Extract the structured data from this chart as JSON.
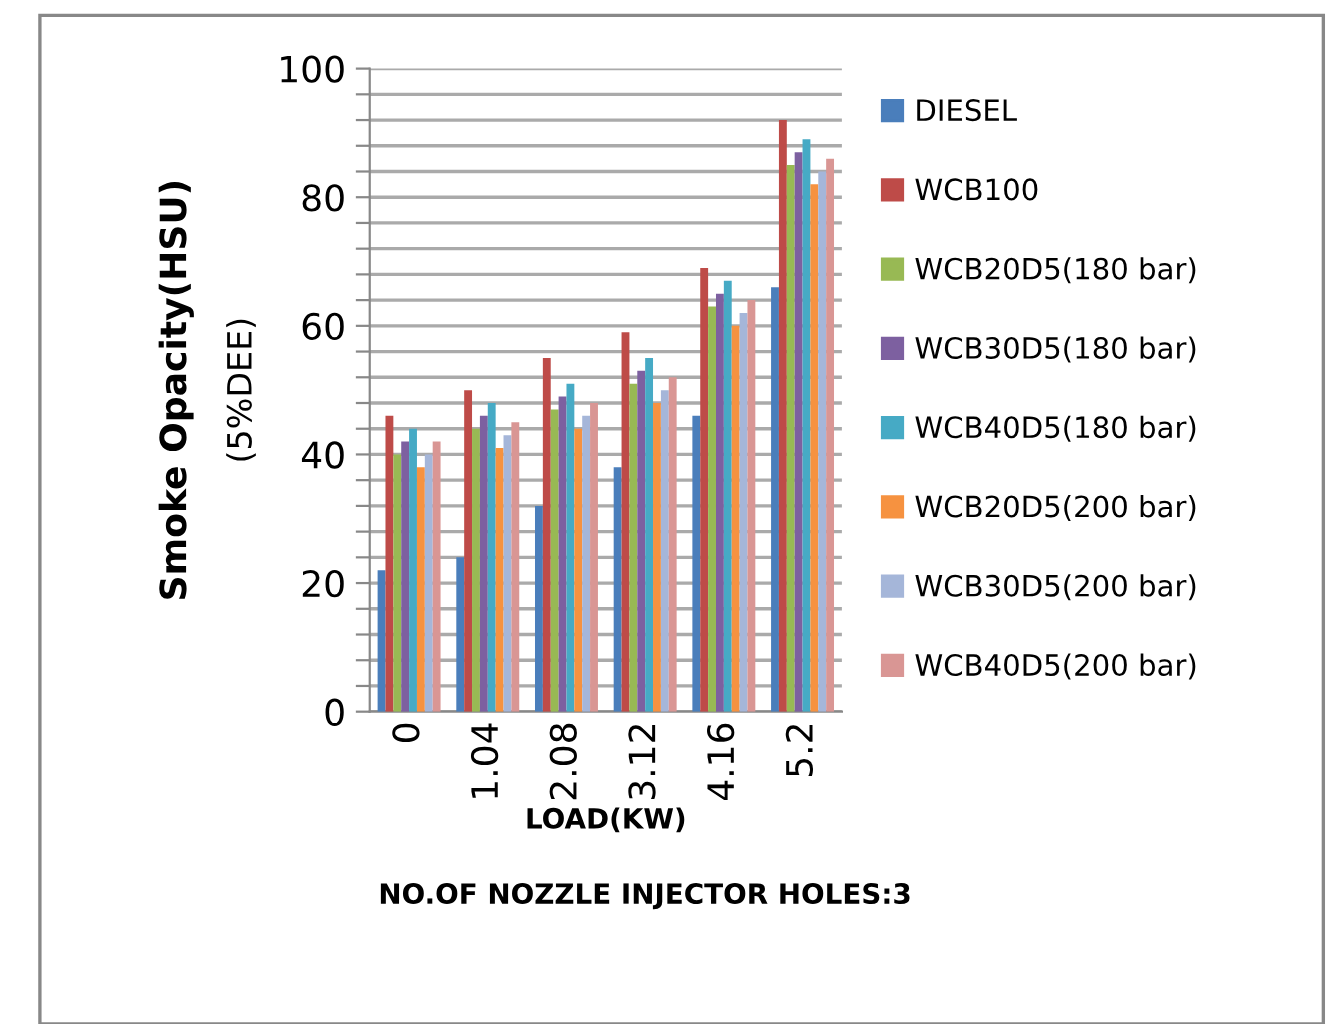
{
  "chart_data": {
    "type": "bar",
    "categories": [
      "0",
      "1.04",
      "2.08",
      "3.12",
      "4.16",
      "5.2"
    ],
    "series": [
      {
        "name": "DIESEL",
        "color": "#4a7ebb",
        "values": [
          22,
          24,
          32,
          38,
          46,
          66
        ]
      },
      {
        "name": "WCB100",
        "color": "#be4b48",
        "values": [
          46,
          50,
          55,
          59,
          69,
          92
        ]
      },
      {
        "name": "WCB20D5(180 bar)",
        "color": "#98b954",
        "values": [
          40,
          44,
          47,
          51,
          63,
          85
        ]
      },
      {
        "name": "WCB30D5(180 bar)",
        "color": "#7d60a0",
        "values": [
          42,
          46,
          49,
          53,
          65,
          87
        ]
      },
      {
        "name": "WCB40D5(180 bar)",
        "color": "#46aac5",
        "values": [
          44,
          48,
          51,
          55,
          67,
          89
        ]
      },
      {
        "name": "WCB20D5(200 bar)",
        "color": "#f69240",
        "values": [
          38,
          41,
          44,
          48,
          60,
          82
        ]
      },
      {
        "name": "WCB30D5(200 bar)",
        "color": "#a5b6d9",
        "values": [
          40,
          43,
          46,
          50,
          62,
          84
        ]
      },
      {
        "name": "WCB40D5(200 bar)",
        "color": "#d99694",
        "values": [
          42,
          45,
          48,
          52,
          64,
          86
        ]
      }
    ],
    "ylabel": "Smoke Opacity(HSU)",
    "xlabel": "LOAD(KW)",
    "annotations": [
      "(5%DEE)",
      "NO.OF NOZZLE INJECTOR HOLES:3"
    ],
    "ylim": [
      0,
      100
    ],
    "yticks": [
      0,
      {
        "value": 4,
        "label": null
      },
      {
        "value": 8,
        "label": null
      },
      {
        "value": 12,
        "label": null
      },
      {
        "value": 16,
        "label": null
      },
      20,
      {
        "value": 24,
        "label": null
      },
      {
        "value": 28,
        "label": null
      },
      {
        "value": 32,
        "label": null
      },
      {
        "value": 36,
        "label": null
      },
      40,
      {
        "value": 44,
        "label": null
      },
      {
        "value": 48,
        "label": null
      },
      {
        "value": 52,
        "label": null
      },
      {
        "value": 56,
        "label": null
      },
      60,
      {
        "value": 64,
        "label": null
      },
      {
        "value": 68,
        "label": null
      },
      {
        "value": 72,
        "label": null
      },
      {
        "value": 76,
        "label": null
      },
      80,
      {
        "value": 84,
        "label": null
      },
      {
        "value": 88,
        "label": null
      },
      {
        "value": 92,
        "label": null
      },
      {
        "value": 96,
        "label": null
      },
      100
    ],
    "grid": "y",
    "legend": "right"
  }
}
